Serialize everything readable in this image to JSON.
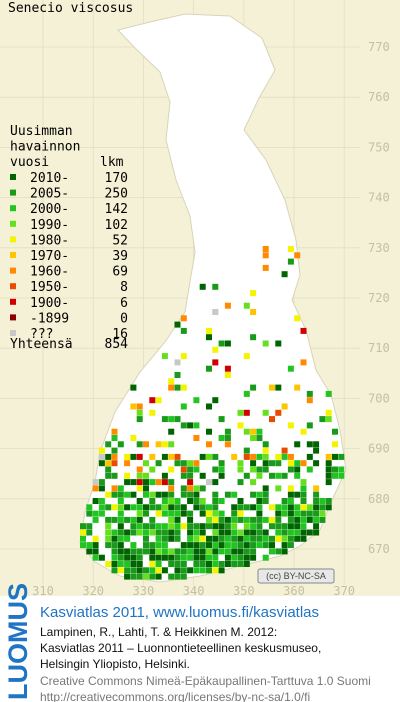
{
  "map": {
    "title": "Senecio viscosus",
    "legend": {
      "header": [
        "Uusimman",
        "havainnon",
        "vuosi"
      ],
      "count_header": "lkm",
      "items": [
        {
          "label": "2010-",
          "count": 170,
          "color": "#006400"
        },
        {
          "label": "2005-",
          "count": 250,
          "color": "#1a9a1a"
        },
        {
          "label": "2000-",
          "count": 142,
          "color": "#22c422"
        },
        {
          "label": "1990-",
          "count": 102,
          "color": "#66e01e"
        },
        {
          "label": "1980-",
          "count": 52,
          "color": "#f4f400"
        },
        {
          "label": "1970-",
          "count": 39,
          "color": "#ffc400"
        },
        {
          "label": "1960-",
          "count": 69,
          "color": "#ff8a00"
        },
        {
          "label": "1950-",
          "count": 8,
          "color": "#e84a00"
        },
        {
          "label": "1900-",
          "count": 6,
          "color": "#d00000"
        },
        {
          "label": "-1899",
          "count": 0,
          "color": "#8c0000"
        },
        {
          "label": "???",
          "count": 16,
          "color": "#c8c8c8"
        }
      ],
      "total_label": "Yhteensä",
      "total": 854
    },
    "yticks": [
      770,
      760,
      750,
      740,
      730,
      720,
      710,
      700,
      690,
      680,
      670
    ],
    "xticks": [
      310,
      320,
      330,
      340,
      350,
      360,
      370
    ],
    "license_badge": "(cc) BY-NC-SA"
  },
  "footer": {
    "logo": "LUOMUS",
    "headline": "Kasviatlas 2011, www.luomus.fi/kasviatlas",
    "citation": [
      "Lampinen, R., Lahti, T. & Heikkinen M. 2012:",
      "Kasviatlas 2011 – Luonnontieteellinen keskusmuseo,",
      "Helsingin Yliopisto, Helsinki."
    ],
    "license": [
      "Creative Commons Nimeä-Epäkaupallinen-Tarttuva 1.0 Suomi",
      "http://creativecommons.org/licenses/by-nc-sa/1.0/fi"
    ]
  }
}
